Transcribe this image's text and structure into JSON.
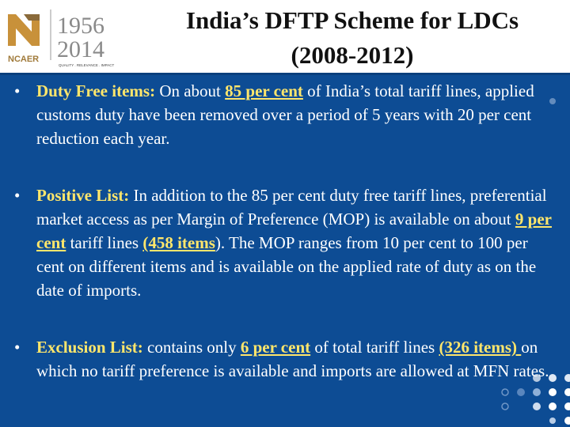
{
  "title": {
    "line1": "India’s DFTP Scheme for LDCs",
    "line2": "(2008-2012)"
  },
  "logo": {
    "years_top": "1956",
    "years_bottom": "2014",
    "brand": "NCAER",
    "tagline": "QUALITY . RELEVANCE . IMPACT",
    "accent_color": "#e8401c"
  },
  "bullets": [
    {
      "term": "Duty Free items:",
      "parts": [
        " On about ",
        "85 per cent",
        " of India’s total tariff lines, applied customs duty have been removed over a period of 5 years with 20 per cent reduction each year."
      ]
    },
    {
      "term": "Positive List:",
      "parts": [
        " In addition to the 85 per cent duty free tariff lines, preferential market access as per Margin of Preference (MOP) is available on about ",
        "9 per cent",
        " tariff lines ",
        "(458 items",
        "). The MOP ranges from 10 per cent to 100 per cent on different items and is available on the applied rate of duty as on the date of imports."
      ]
    },
    {
      "term": "Exclusion List:",
      "parts": [
        " contains only ",
        "6 per cent",
        " of total tariff lines ",
        "(326 items) ",
        "on which no tariff preference is available and imports are allowed at MFN rates."
      ]
    }
  ],
  "colors": {
    "background": "#0d4c94",
    "highlight": "#ffe66b",
    "text": "#ffffff"
  }
}
